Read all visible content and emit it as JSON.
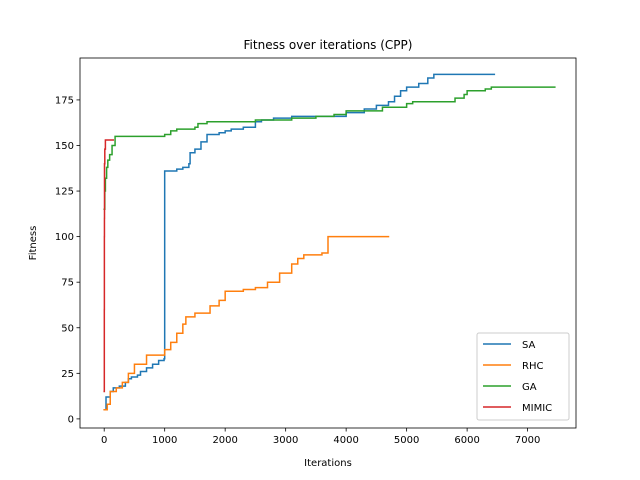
{
  "chart_data": {
    "type": "line",
    "title": "Fitness over iterations (CPP)",
    "xlabel": "Iterations",
    "ylabel": "Fitness",
    "xlim": [
      -400,
      7800
    ],
    "ylim": [
      -5,
      198
    ],
    "xticks": [
      0,
      1000,
      2000,
      3000,
      4000,
      5000,
      6000,
      7000
    ],
    "yticks": [
      0,
      25,
      50,
      75,
      100,
      125,
      150,
      175
    ],
    "grid": false,
    "legend_position": "lower-right",
    "series": [
      {
        "name": "SA",
        "color": "#1f77b4",
        "points": [
          [
            0,
            5
          ],
          [
            30,
            12
          ],
          [
            100,
            15
          ],
          [
            150,
            17
          ],
          [
            250,
            18
          ],
          [
            350,
            20
          ],
          [
            400,
            22
          ],
          [
            450,
            23
          ],
          [
            550,
            24
          ],
          [
            600,
            26
          ],
          [
            700,
            28
          ],
          [
            800,
            30
          ],
          [
            900,
            32
          ],
          [
            990,
            33
          ],
          [
            1000,
            136
          ],
          [
            1050,
            136
          ],
          [
            1200,
            137
          ],
          [
            1300,
            138
          ],
          [
            1400,
            140
          ],
          [
            1420,
            146
          ],
          [
            1500,
            148
          ],
          [
            1600,
            152
          ],
          [
            1700,
            156
          ],
          [
            1900,
            157
          ],
          [
            2000,
            158
          ],
          [
            2100,
            159
          ],
          [
            2300,
            160
          ],
          [
            2500,
            163
          ],
          [
            2600,
            164
          ],
          [
            2800,
            165
          ],
          [
            3000,
            165
          ],
          [
            3100,
            166
          ],
          [
            3400,
            166
          ],
          [
            3700,
            166
          ],
          [
            4000,
            168
          ],
          [
            4300,
            170
          ],
          [
            4500,
            172
          ],
          [
            4700,
            174
          ],
          [
            4800,
            177
          ],
          [
            4900,
            180
          ],
          [
            5000,
            182
          ],
          [
            5200,
            184
          ],
          [
            5350,
            187
          ],
          [
            5450,
            189
          ],
          [
            6450,
            189
          ]
        ]
      },
      {
        "name": "RHC",
        "color": "#ff7f0e",
        "points": [
          [
            0,
            5
          ],
          [
            50,
            8
          ],
          [
            100,
            15
          ],
          [
            200,
            17
          ],
          [
            300,
            20
          ],
          [
            400,
            25
          ],
          [
            500,
            30
          ],
          [
            700,
            35
          ],
          [
            950,
            35
          ],
          [
            1000,
            38
          ],
          [
            1100,
            42
          ],
          [
            1200,
            47
          ],
          [
            1300,
            52
          ],
          [
            1350,
            56
          ],
          [
            1500,
            58
          ],
          [
            1700,
            58
          ],
          [
            1750,
            62
          ],
          [
            1900,
            65
          ],
          [
            2000,
            70
          ],
          [
            2300,
            71
          ],
          [
            2500,
            72
          ],
          [
            2700,
            75
          ],
          [
            2900,
            80
          ],
          [
            3100,
            85
          ],
          [
            3200,
            88
          ],
          [
            3300,
            90
          ],
          [
            3600,
            91
          ],
          [
            3700,
            100
          ],
          [
            4700,
            100
          ]
        ]
      },
      {
        "name": "GA",
        "color": "#2ca02c",
        "points": [
          [
            0,
            115
          ],
          [
            10,
            125
          ],
          [
            20,
            132
          ],
          [
            40,
            138
          ],
          [
            60,
            142
          ],
          [
            90,
            145
          ],
          [
            130,
            150
          ],
          [
            180,
            155
          ],
          [
            400,
            155
          ],
          [
            600,
            155
          ],
          [
            800,
            155
          ],
          [
            1000,
            156
          ],
          [
            1100,
            158
          ],
          [
            1200,
            159
          ],
          [
            1500,
            160
          ],
          [
            1550,
            162
          ],
          [
            1700,
            163
          ],
          [
            2000,
            163
          ],
          [
            2200,
            163
          ],
          [
            2500,
            164
          ],
          [
            3000,
            164
          ],
          [
            3100,
            165
          ],
          [
            3500,
            166
          ],
          [
            3800,
            167
          ],
          [
            4000,
            169
          ],
          [
            4200,
            169
          ],
          [
            4600,
            171
          ],
          [
            5000,
            173
          ],
          [
            5100,
            174
          ],
          [
            5600,
            174
          ],
          [
            5800,
            176
          ],
          [
            5950,
            178
          ],
          [
            6000,
            180
          ],
          [
            6300,
            181
          ],
          [
            6400,
            182
          ],
          [
            7450,
            182
          ]
        ]
      },
      {
        "name": "MIMIC",
        "color": "#d62728",
        "points": [
          [
            0,
            15
          ],
          [
            2,
            60
          ],
          [
            3,
            100
          ],
          [
            4,
            110
          ],
          [
            5,
            140
          ],
          [
            10,
            148
          ],
          [
            20,
            153
          ],
          [
            150,
            153
          ]
        ]
      }
    ]
  }
}
